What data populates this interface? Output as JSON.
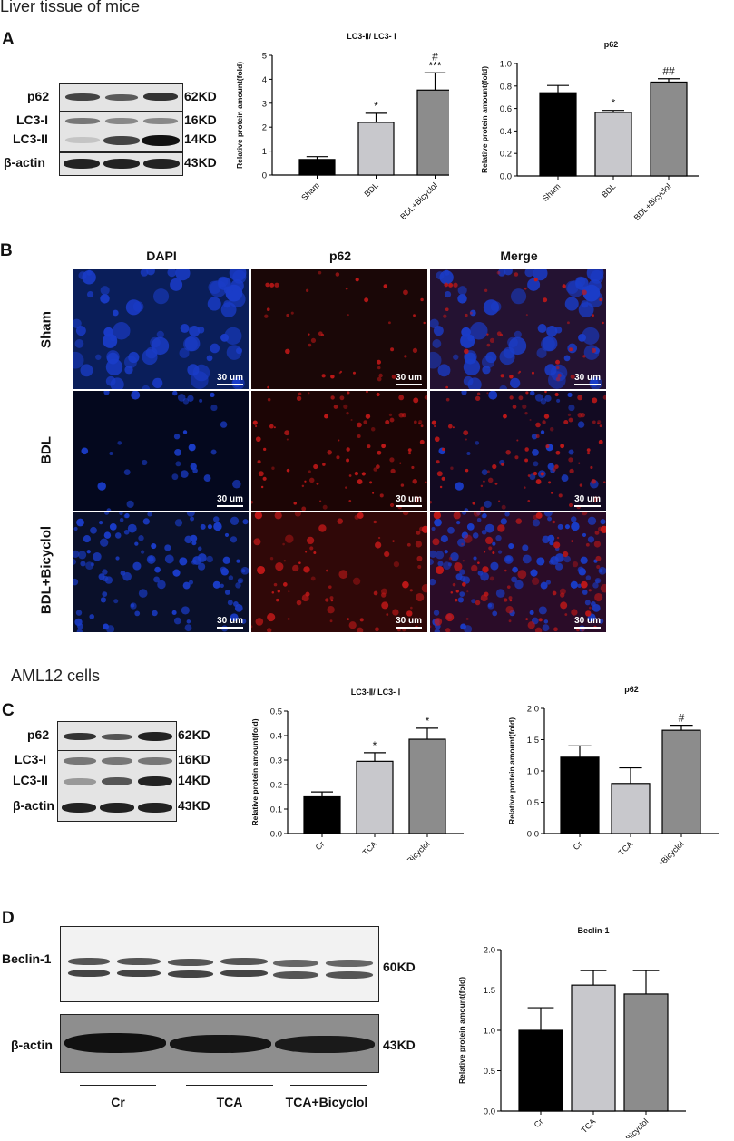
{
  "figure": {
    "section1_title": "Liver tissue of mice",
    "section2_title": "AML12 cells",
    "panels": {
      "a": "A",
      "b": "B",
      "c": "C",
      "d": "D"
    }
  },
  "blot_a": {
    "labels": [
      "p62",
      "LC3-I",
      "LC3-II",
      "β-actin"
    ],
    "kd": [
      "62KD",
      "16KD",
      "14KD",
      "43KD"
    ]
  },
  "blot_c": {
    "labels": [
      "p62",
      "LC3-I",
      "LC3-II",
      "β-actin"
    ],
    "kd": [
      "62KD",
      "16KD",
      "14KD",
      "43KD"
    ]
  },
  "blot_d": {
    "labels": [
      "Beclin-1",
      "β-actin"
    ],
    "kd": [
      "60KD",
      "43KD"
    ],
    "groups": [
      "Cr",
      "TCA",
      "TCA+Bicyclol"
    ]
  },
  "if_panel": {
    "columns": [
      "DAPI",
      "p62",
      "Merge"
    ],
    "rows": [
      "Sham",
      "BDL",
      "BDL+Bicyclol"
    ],
    "scale_label": "30 um"
  },
  "colors": {
    "dapi": "#1a3cc8",
    "p62": "#c01818",
    "bar_1": "#000000",
    "bar_2": "#c8c8cc",
    "bar_3": "#8c8c8c"
  },
  "chart_data": [
    {
      "id": "a1",
      "type": "bar",
      "title": "LC3-Ⅱ/ LC3- Ⅰ",
      "ylabel": "Relative protein amount(fold)",
      "categories": [
        "Sham",
        "BDL",
        "BDL+Bicyclol"
      ],
      "values": [
        0.65,
        2.2,
        3.55
      ],
      "errors": [
        0.12,
        0.38,
        0.72
      ],
      "annotations": [
        "",
        "*",
        "#\n***"
      ],
      "ylim": [
        0,
        5
      ],
      "yticks": [
        "0",
        "1",
        "2",
        "3",
        "4",
        "5"
      ]
    },
    {
      "id": "a2",
      "type": "bar",
      "title": "p62",
      "ylabel": "Relative protein amount(fold)",
      "categories": [
        "Sham",
        "BDL",
        "BDL+Bicyclol"
      ],
      "values": [
        0.74,
        0.565,
        0.835
      ],
      "errors": [
        0.065,
        0.018,
        0.03
      ],
      "annotations": [
        "",
        "*",
        "##"
      ],
      "ylim": [
        0,
        1.0
      ],
      "yticks": [
        "0.0",
        "0.2",
        "0.4",
        "0.6",
        "0.8",
        "1.0"
      ]
    },
    {
      "id": "c1",
      "type": "bar",
      "title": "LC3-Ⅱ/ LC3- Ⅰ",
      "ylabel": "Relative protein amount(fold)",
      "categories": [
        "Cr",
        "TCA",
        "TCA+Bicyclol"
      ],
      "values": [
        0.15,
        0.295,
        0.385
      ],
      "errors": [
        0.02,
        0.035,
        0.045
      ],
      "annotations": [
        "",
        "*",
        "*"
      ],
      "ylim": [
        0,
        0.5
      ],
      "yticks": [
        "0.0",
        "0.1",
        "0.2",
        "0.3",
        "0.4",
        "0.5"
      ]
    },
    {
      "id": "c2",
      "type": "bar",
      "title": "p62",
      "ylabel": "Relative protein amount(fold)",
      "categories": [
        "Cr",
        "TCA",
        "TCA+Bicyclol"
      ],
      "values": [
        1.22,
        0.8,
        1.65
      ],
      "errors": [
        0.18,
        0.25,
        0.08
      ],
      "annotations": [
        "",
        "",
        "#"
      ],
      "ylim": [
        0,
        2.0
      ],
      "yticks": [
        "0.0",
        "0.5",
        "1.0",
        "1.5",
        "2.0"
      ]
    },
    {
      "id": "d1",
      "type": "bar",
      "title": "Beclin-1",
      "ylabel": "Relative protein amount(fold)",
      "categories": [
        "Cr",
        "TCA",
        "TCA+Bicyclol"
      ],
      "values": [
        1.0,
        1.56,
        1.45
      ],
      "errors": [
        0.28,
        0.18,
        0.29
      ],
      "annotations": [
        "",
        "",
        ""
      ],
      "ylim": [
        0,
        2.0
      ],
      "yticks": [
        "0.0",
        "0.5",
        "1.0",
        "1.5",
        "2.0"
      ]
    }
  ]
}
